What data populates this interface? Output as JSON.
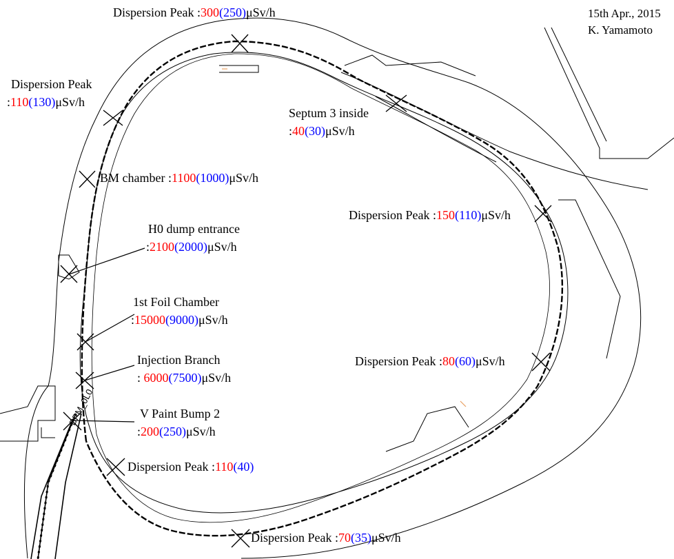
{
  "header": {
    "date": "15th Apr., 2015",
    "author": "K. Yamamoto"
  },
  "colors": {
    "red": "#ff0000",
    "blue": "#0000ff",
    "line": "#000000",
    "accent": "#e8a060"
  },
  "labels": {
    "disp_top": {
      "title": "Dispersion Peak",
      "sep": " :",
      "red": "300",
      "blue": "(250)",
      "unit": "μSv/h"
    },
    "disp_left": {
      "title": "Dispersion Peak",
      "sep": ":",
      "red": "110",
      "blue": "(130)",
      "unit": "μSv/h"
    },
    "septum": {
      "title": "Septum 3 inside",
      "sep": ":",
      "red": "40",
      "blue": "(30)",
      "unit": "μSv/h"
    },
    "bm": {
      "title": "BM chamber",
      "sep": " :",
      "red": "1100",
      "blue": "(1000)",
      "unit": "μSv/h"
    },
    "disp_right": {
      "title": "Dispersion Peak",
      "sep": " :",
      "red": "150",
      "blue": "(110)",
      "unit": "μSv/h"
    },
    "h0": {
      "title": "H0 dump entrance",
      "sep": ":",
      "red": "2100",
      "blue": "(2000)",
      "unit": "μSv/h"
    },
    "foil": {
      "title": "1st Foil Chamber",
      "sep": ":",
      "red": "15000",
      "blue": "(9000)",
      "unit": "μSv/h"
    },
    "disp_mid": {
      "title": "Dispersion Peak",
      "sep": " :",
      "red": "80",
      "blue": "(60)",
      "unit": "μSv/h"
    },
    "injection": {
      "title": "Injection Branch",
      "sep": ": ",
      "red": "6000",
      "blue": "(7500)",
      "unit": "μSv/h"
    },
    "vpaint": {
      "title": "V Paint Bump 2",
      "sep": ":",
      "red": "200",
      "blue": "(250)",
      "unit": "μSv/h"
    },
    "disp_bl": {
      "title": "Dispersion Peak",
      "sep": " :",
      "red": "110",
      "blue": "(40)",
      "unit": ""
    },
    "disp_bottom": {
      "title": "Dispersion Peak",
      "sep": " :",
      "red": "70",
      "blue": "(35)",
      "unit": "μSv/h"
    }
  },
  "device_tag": "BPM_0L0"
}
